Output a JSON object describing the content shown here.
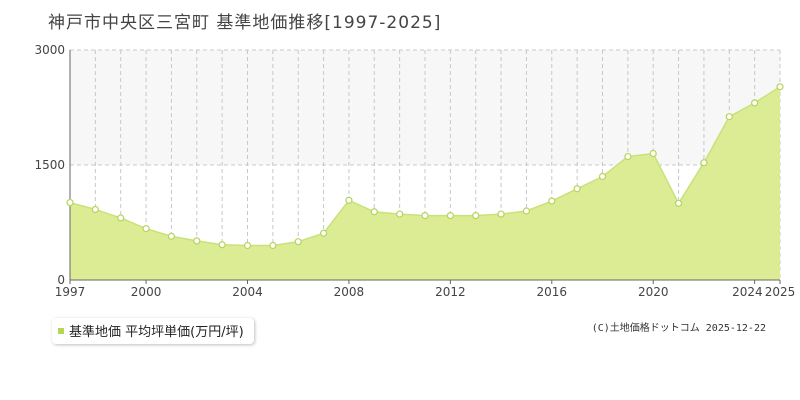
{
  "title": "神戸市中央区三宮町 基準地価推移[1997-2025]",
  "legend": {
    "label": "基準地価 平均坪単価(万円/坪)"
  },
  "credit": "(C)土地価格ドットコム 2025-12-22",
  "colors": {
    "fill": "#dcec95",
    "line": "#c8e27a",
    "marker_fill": "#ffffff",
    "marker_stroke": "#b5d45a",
    "grid": "#c8c8c8",
    "axis": "#666666",
    "upper_band": "#f7f7f7"
  },
  "chart_data": {
    "type": "area",
    "x": [
      1997,
      1998,
      1999,
      2000,
      2001,
      2002,
      2003,
      2004,
      2005,
      2006,
      2007,
      2008,
      2009,
      2010,
      2011,
      2012,
      2013,
      2014,
      2015,
      2016,
      2017,
      2018,
      2019,
      2020,
      2021,
      2022,
      2023,
      2024,
      2025
    ],
    "series": [
      {
        "values": [
          1010,
          920,
          810,
          670,
          570,
          510,
          460,
          450,
          450,
          500,
          610,
          1040,
          890,
          860,
          840,
          840,
          840,
          860,
          900,
          1030,
          1190,
          1350,
          1610,
          1650,
          1000,
          1530,
          2130,
          2310,
          2520
        ]
      }
    ],
    "xlim": [
      1997,
      2025
    ],
    "ylim": [
      0,
      3000
    ],
    "yticks": [
      0,
      1500,
      3000
    ],
    "ytick_labels": [
      "0",
      "1500",
      "3000"
    ],
    "xtick_labels": [
      "1997",
      "2000",
      "2004",
      "2008",
      "2012",
      "2016",
      "2020",
      "2024",
      "2025"
    ],
    "grid": true
  }
}
